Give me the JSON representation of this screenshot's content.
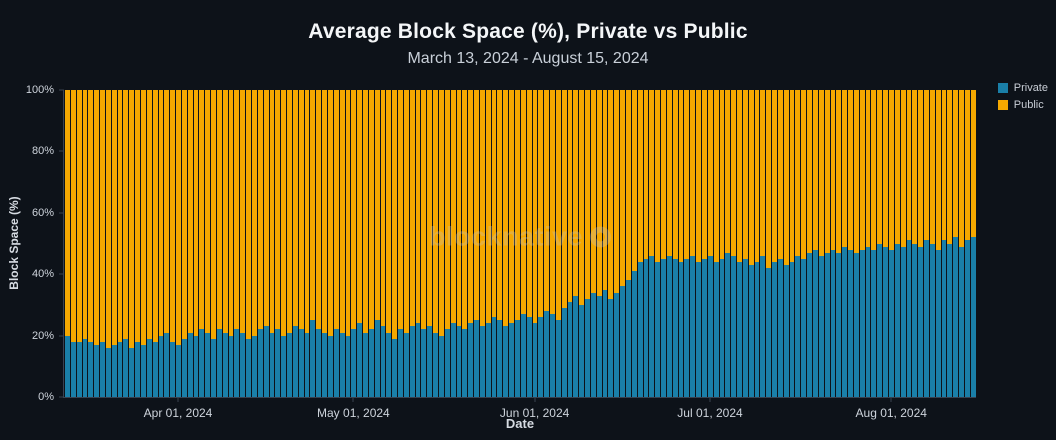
{
  "watermark": "blocknative",
  "chart_data": {
    "type": "bar",
    "stacked": true,
    "stack_total": 100,
    "title": "Average Block Space (%), Private vs Public",
    "subtitle": "March 13, 2024 - August 15, 2024",
    "xlabel": "Date",
    "ylabel": "Block Space (%)",
    "ylim": [
      0,
      100
    ],
    "grid": false,
    "legend_position": "top-right",
    "y_ticks": [
      "0%",
      "20%",
      "40%",
      "60%",
      "80%",
      "100%"
    ],
    "x_start": "2024-03-13",
    "x_end": "2024-08-15",
    "x_ticks": [
      {
        "date": "2024-04-01",
        "label": "Apr 01, 2024"
      },
      {
        "date": "2024-05-01",
        "label": "May 01, 2024"
      },
      {
        "date": "2024-06-01",
        "label": "Jun 01, 2024"
      },
      {
        "date": "2024-07-01",
        "label": "Jul 01, 2024"
      },
      {
        "date": "2024-08-01",
        "label": "Aug 01, 2024"
      }
    ],
    "series": [
      {
        "name": "Private",
        "color": "#1a7fa8",
        "values": [
          20,
          18,
          18,
          19,
          18,
          17,
          18,
          16,
          17,
          18,
          19,
          16,
          18,
          17,
          19,
          18,
          20,
          21,
          18,
          17,
          19,
          21,
          20,
          22,
          21,
          19,
          22,
          21,
          20,
          22,
          21,
          19,
          20,
          22,
          23,
          21,
          22,
          20,
          21,
          23,
          22,
          21,
          25,
          22,
          21,
          20,
          22,
          21,
          20,
          22,
          24,
          21,
          22,
          25,
          23,
          21,
          19,
          22,
          21,
          23,
          24,
          22,
          23,
          21,
          20,
          22,
          24,
          23,
          22,
          24,
          25,
          23,
          24,
          26,
          25,
          23,
          24,
          25,
          27,
          26,
          24,
          26,
          28,
          27,
          25,
          29,
          31,
          33,
          30,
          32,
          34,
          33,
          35,
          32,
          34,
          36,
          38,
          41,
          44,
          45,
          46,
          44,
          45,
          46,
          45,
          44,
          45,
          46,
          44,
          45,
          46,
          44,
          45,
          47,
          46,
          44,
          45,
          43,
          44,
          46,
          42,
          44,
          45,
          43,
          44,
          46,
          45,
          47,
          48,
          46,
          47,
          48,
          47,
          49,
          48,
          47,
          48,
          49,
          48,
          50,
          49,
          48,
          50,
          49,
          51,
          50,
          49,
          51,
          50,
          48,
          51,
          50,
          52,
          49,
          51,
          52
        ]
      },
      {
        "name": "Public",
        "color": "#f5a800",
        "values": [
          80,
          82,
          82,
          81,
          82,
          83,
          82,
          84,
          83,
          82,
          81,
          84,
          82,
          83,
          81,
          82,
          80,
          79,
          82,
          83,
          81,
          79,
          80,
          78,
          79,
          81,
          78,
          79,
          80,
          78,
          79,
          81,
          80,
          78,
          77,
          79,
          78,
          80,
          79,
          77,
          78,
          79,
          75,
          78,
          79,
          80,
          78,
          79,
          80,
          78,
          76,
          79,
          78,
          75,
          77,
          79,
          81,
          78,
          79,
          77,
          76,
          78,
          77,
          79,
          80,
          78,
          76,
          77,
          78,
          76,
          75,
          77,
          76,
          74,
          75,
          77,
          76,
          75,
          73,
          74,
          76,
          74,
          72,
          73,
          75,
          71,
          69,
          67,
          70,
          68,
          66,
          67,
          65,
          68,
          66,
          64,
          62,
          59,
          56,
          55,
          54,
          56,
          55,
          54,
          55,
          56,
          55,
          54,
          56,
          55,
          54,
          56,
          55,
          53,
          54,
          56,
          55,
          57,
          56,
          54,
          58,
          56,
          55,
          57,
          56,
          54,
          55,
          53,
          52,
          54,
          53,
          52,
          53,
          51,
          52,
          53,
          52,
          51,
          52,
          50,
          51,
          52,
          50,
          51,
          49,
          50,
          51,
          49,
          50,
          52,
          49,
          50,
          48,
          51,
          49,
          48
        ]
      }
    ]
  }
}
